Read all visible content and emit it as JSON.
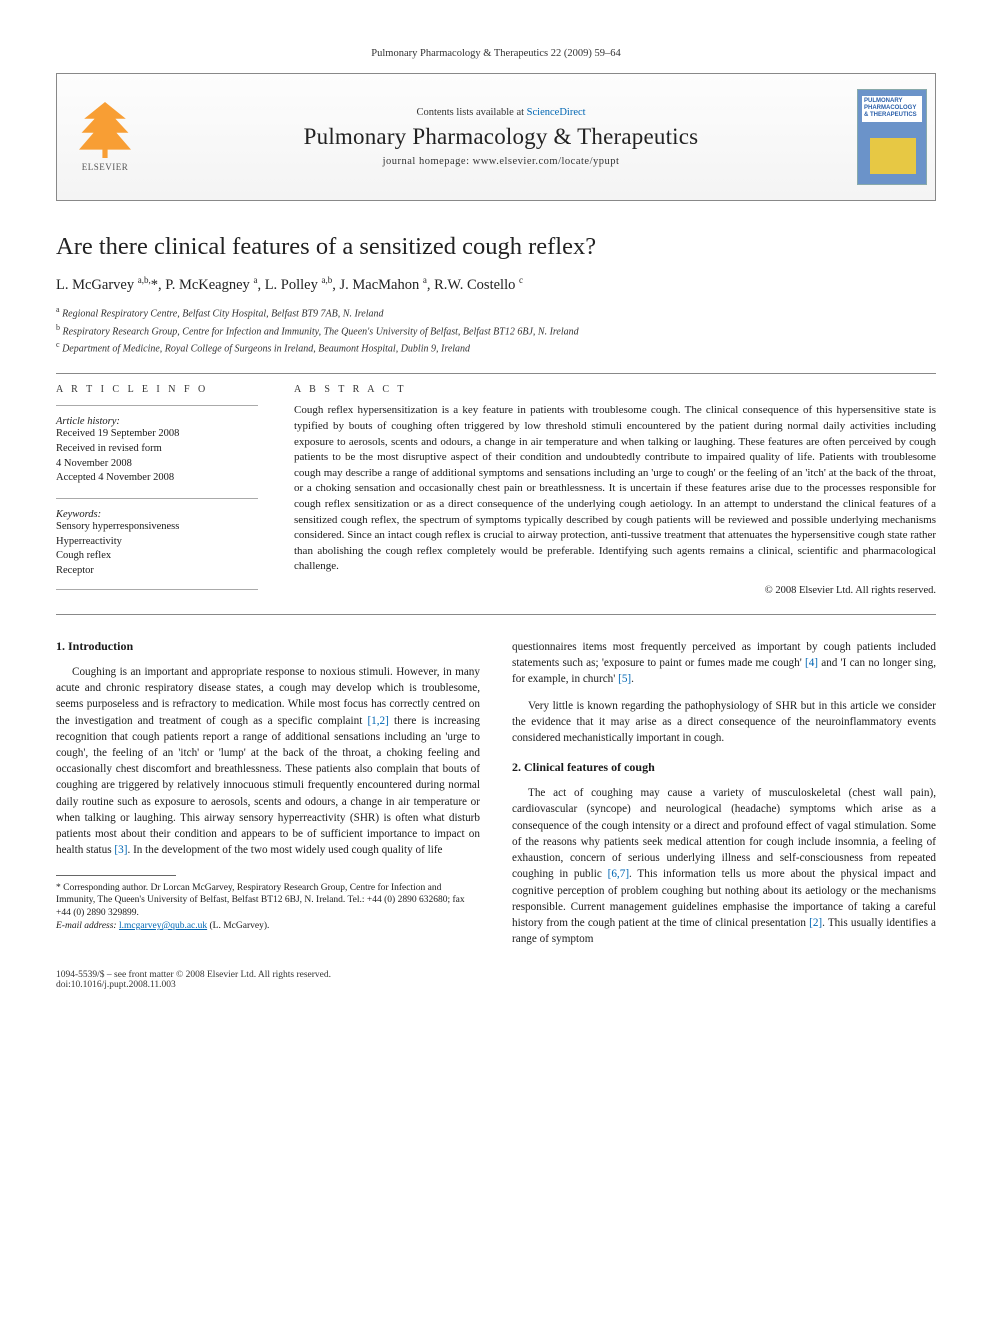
{
  "running_head": "Pulmonary Pharmacology & Therapeutics 22 (2009) 59–64",
  "masthead": {
    "publisher": "ELSEVIER",
    "contents_prefix": "Contents lists available at ",
    "contents_link": "ScienceDirect",
    "journal": "Pulmonary Pharmacology & Therapeutics",
    "homepage": "journal homepage: www.elsevier.com/locate/ypupt",
    "cover_text": "PULMONARY PHARMACOLOGY & THERAPEUTICS"
  },
  "title": "Are there clinical features of a sensitized cough reflex?",
  "authors_html": "L. McGarvey <sup>a,b,</sup>*, P. McKeagney <sup>a</sup>, L. Polley <sup>a,b</sup>, J. MacMahon <sup>a</sup>, R.W. Costello <sup>c</sup>",
  "affiliations": [
    {
      "sup": "a",
      "text": "Regional Respiratory Centre, Belfast City Hospital, Belfast BT9 7AB, N. Ireland"
    },
    {
      "sup": "b",
      "text": "Respiratory Research Group, Centre for Infection and Immunity, The Queen's University of Belfast, Belfast BT12 6BJ, N. Ireland"
    },
    {
      "sup": "c",
      "text": "Department of Medicine, Royal College of Surgeons in Ireland, Beaumont Hospital, Dublin 9, Ireland"
    }
  ],
  "info_head": "A R T I C L E   I N F O",
  "abs_head": "A B S T R A C T",
  "history_label": "Article history:",
  "history": [
    "Received 19 September 2008",
    "Received in revised form",
    "4 November 2008",
    "Accepted 4 November 2008"
  ],
  "keywords_label": "Keywords:",
  "keywords": [
    "Sensory hyperresponsiveness",
    "Hyperreactivity",
    "Cough reflex",
    "Receptor"
  ],
  "abstract": "Cough reflex hypersensitization is a key feature in patients with troublesome cough. The clinical consequence of this hypersensitive state is typified by bouts of coughing often triggered by low threshold stimuli encountered by the patient during normal daily activities including exposure to aerosols, scents and odours, a change in air temperature and when talking or laughing. These features are often perceived by cough patients to be the most disruptive aspect of their condition and undoubtedly contribute to impaired quality of life. Patients with troublesome cough may describe a range of additional symptoms and sensations including an 'urge to cough' or the feeling of an 'itch' at the back of the throat, or a choking sensation and occasionally chest pain or breathlessness. It is uncertain if these features arise due to the processes responsible for cough reflex sensitization or as a direct consequence of the underlying cough aetiology. In an attempt to understand the clinical features of a sensitized cough reflex, the spectrum of symptoms typically described by cough patients will be reviewed and possible underlying mechanisms considered. Since an intact cough reflex is crucial to airway protection, anti-tussive treatment that attenuates the hypersensitive cough state rather than abolishing the cough reflex completely would be preferable. Identifying such agents remains a clinical, scientific and pharmacological challenge.",
  "copyright": "© 2008 Elsevier Ltd. All rights reserved.",
  "sections": {
    "intro_head": "1. Introduction",
    "intro_p1": "Coughing is an important and appropriate response to noxious stimuli. However, in many acute and chronic respiratory disease states, a cough may develop which is troublesome, seems purposeless and is refractory to medication. While most focus has correctly centred on the investigation and treatment of cough as a specific complaint [1,2] there is increasing recognition that cough patients report a range of additional sensations including an 'urge to cough', the feeling of an 'itch' or 'lump' at the back of the throat, a choking feeling and occasionally chest discomfort and breathlessness. These patients also complain that bouts of coughing are triggered by relatively innocuous stimuli frequently encountered during normal daily routine such as exposure to aerosols, scents and odours, a change in air temperature or when talking or laughing. This airway sensory hyperreactivity (SHR) is often what disturb patients most about their condition and appears to be of sufficient importance to impact on health status [3]. In the development of the two most widely used cough quality of life",
    "intro_p1_cont": "questionnaires items most frequently perceived as important by cough patients included statements such as; 'exposure to paint or fumes made me cough' [4] and 'I can no longer sing, for example, in church' [5].",
    "intro_p2": "Very little is known regarding the pathophysiology of SHR but in this article we consider the evidence that it may arise as a direct consequence of the neuroinflammatory events considered mechanistically important in cough.",
    "clin_head": "2. Clinical features of cough",
    "clin_p1": "The act of coughing may cause a variety of musculoskeletal (chest wall pain), cardiovascular (syncope) and neurological (headache) symptoms which arise as a consequence of the cough intensity or a direct and profound effect of vagal stimulation. Some of the reasons why patients seek medical attention for cough include insomnia, a feeling of exhaustion, concern of serious underlying illness and self-consciousness from repeated coughing in public [6,7]. This information tells us more about the physical impact and cognitive perception of problem coughing but nothing about its aetiology or the mechanisms responsible. Current management guidelines emphasise the importance of taking a careful history from the cough patient at the time of clinical presentation [2]. This usually identifies a range of symptom"
  },
  "footnote": {
    "corr": "* Corresponding author. Dr Lorcan McGarvey, Respiratory Research Group, Centre for Infection and Immunity, The Queen's University of Belfast, Belfast BT12 6BJ, N. Ireland. Tel.: +44 (0) 2890 632680; fax +44 (0) 2890 329899.",
    "email_label": "E-mail address: ",
    "email": "l.mcgarvey@qub.ac.uk",
    "email_suffix": " (L. McGarvey)."
  },
  "footer": {
    "left": "1094-5539/$ – see front matter © 2008 Elsevier Ltd. All rights reserved.",
    "doi": "doi:10.1016/j.pupt.2008.11.003"
  },
  "ref_color": "#0066b3"
}
